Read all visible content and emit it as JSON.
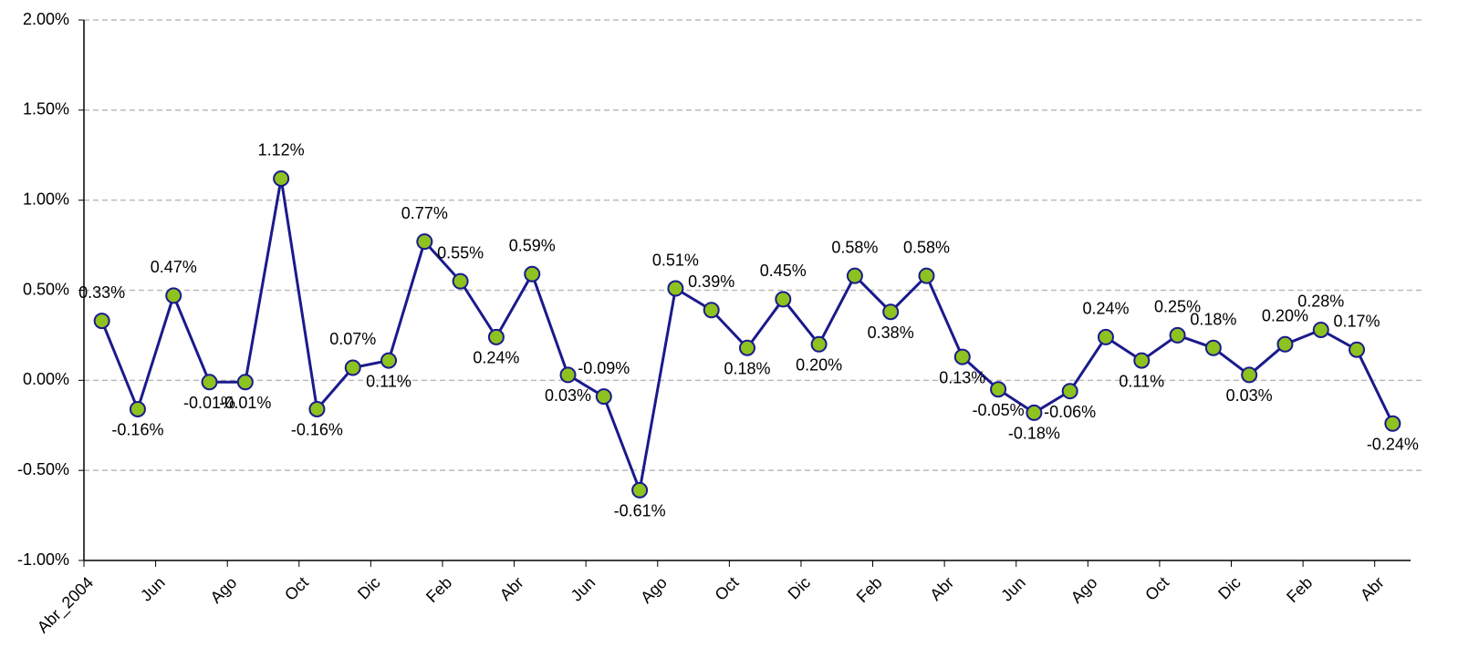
{
  "chart_data": {
    "type": "line",
    "categories": [
      "Abr_2004",
      null,
      "Jun",
      null,
      "Ago",
      null,
      "Oct",
      null,
      "Dic",
      null,
      "Feb",
      null,
      "Abr",
      null,
      "Jun",
      null,
      "Ago",
      null,
      "Oct",
      null,
      "Dic",
      null,
      "Feb",
      null,
      "Abr",
      null,
      "Jun",
      null,
      "Ago",
      null,
      "Oct",
      null,
      "Dic",
      null,
      "Feb",
      null,
      "Abr"
    ],
    "series": [
      {
        "color": "#1a1a8c",
        "marker_color": "#8dc21f",
        "values": [
          0.33,
          -0.16,
          0.47,
          -0.01,
          -0.01,
          1.12,
          -0.16,
          0.07,
          0.11,
          0.77,
          0.55,
          0.24,
          0.59,
          0.03,
          -0.09,
          -0.61,
          0.51,
          0.39,
          0.18,
          0.45,
          0.2,
          0.58,
          0.38,
          0.58,
          0.13,
          -0.05,
          -0.18,
          -0.06,
          0.24,
          0.11,
          0.25,
          0.18,
          0.03,
          0.2,
          0.28,
          0.17,
          -0.24
        ],
        "value_labels": [
          "0.33%",
          "-0.16%",
          "0.47%",
          "-0.01%",
          "-0.01%",
          "1.12%",
          "-0.16%",
          "0.07%",
          "0.11%",
          "0.77%",
          "0.55%",
          "0.24%",
          "0.59%",
          "0.03%",
          "-0.09%",
          "-0.61%",
          "0.51%",
          "0.39%",
          "0.18%",
          "0.45%",
          "0.20%",
          "0.58%",
          "0.38%",
          "0.58%",
          "0.13%",
          "-0.05%",
          "-0.18%",
          "-0.06%",
          "0.24%",
          "0.11%",
          "0.25%",
          "0.18%",
          "0.03%",
          "0.20%",
          "0.28%",
          "0.17%",
          "-0.24%"
        ]
      }
    ],
    "ylim": [
      -1.0,
      2.0
    ],
    "yticks": [
      {
        "value": -1.0,
        "label": "-1.00%"
      },
      {
        "value": -0.5,
        "label": "-0.50%"
      },
      {
        "value": 0,
        "label": "0.00%"
      },
      {
        "value": 0.5,
        "label": "0.50%"
      },
      {
        "value": 1.0,
        "label": "1.00%"
      },
      {
        "value": 1.5,
        "label": "1.50%"
      },
      {
        "value": 2.0,
        "label": "2.00%"
      }
    ],
    "grid": true
  }
}
